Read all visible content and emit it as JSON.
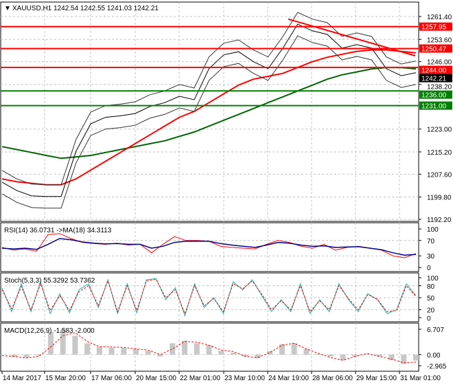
{
  "chart_data": [
    {
      "type": "line",
      "title": "XAUUSD,H1",
      "ohlc": {
        "open": "1242.54",
        "high": "1242.55",
        "low": "1241.03",
        "close": "1242.21"
      },
      "ylim": [
        1192.2,
        1261.4
      ],
      "yticks": [
        "1261.40",
        "1253.60",
        "1246.00",
        "1238.20",
        "1223.00",
        "1215.20",
        "1207.60",
        "1199.80",
        "1192.20"
      ],
      "close": [
        1204.9,
        1202,
        1200.2,
        1200,
        1200,
        1215.4,
        1224.8,
        1227,
        1227.5,
        1228.3,
        1230.7,
        1232,
        1234.2,
        1233,
        1243.6,
        1248.3,
        1249.4,
        1246,
        1243.6,
        1250.6,
        1258.8,
        1256.5,
        1255.3,
        1250.6,
        1251.8,
        1250.6,
        1243.6,
        1241.2,
        1242.2
      ],
      "ma_red": [
        1206,
        1205,
        1204.5,
        1204,
        1204,
        1206,
        1209,
        1212,
        1215,
        1218,
        1221,
        1224,
        1227,
        1229,
        1232,
        1235,
        1238,
        1240,
        1241,
        1242,
        1244,
        1246,
        1247.5,
        1248.5,
        1249.5,
        1250,
        1250,
        1249.5,
        1249
      ],
      "ma_green": [
        1217,
        1216,
        1215,
        1214,
        1213,
        1213.5,
        1214,
        1215,
        1216,
        1217,
        1218,
        1219,
        1220.5,
        1222,
        1224,
        1226,
        1228,
        1230,
        1232,
        1234,
        1236,
        1238,
        1240,
        1241.5,
        1242.5,
        1243.5,
        1244,
        1244,
        1243.5
      ],
      "levels": [
        {
          "value": "1257.95",
          "color": "#ff0000"
        },
        {
          "value": "1250.47",
          "color": "#ff0000"
        },
        {
          "value": "1244.00",
          "color": "#ff0000"
        },
        {
          "value": "1236.00",
          "color": "#008000"
        },
        {
          "value": "1231.00",
          "color": "#008000"
        }
      ],
      "current": "1242.21"
    },
    {
      "type": "line",
      "title": "RSI(14) 36.0731 ->MA(18) 34.3113",
      "ylim": [
        0,
        100
      ],
      "yticks": [
        "100",
        "70",
        "30",
        "0"
      ],
      "rsi": [
        52,
        45,
        48,
        42,
        85,
        88,
        75,
        65,
        62,
        60,
        63,
        58,
        60,
        38,
        60,
        80,
        70,
        70,
        68,
        55,
        52,
        50,
        48,
        60,
        70,
        65,
        55,
        50,
        60,
        45,
        52,
        55,
        50,
        45,
        30,
        25,
        36
      ],
      "ma": [
        50,
        48,
        50,
        47,
        60,
        75,
        72,
        66,
        63,
        61,
        62,
        60,
        60,
        50,
        55,
        65,
        68,
        68,
        68,
        62,
        58,
        55,
        52,
        58,
        65,
        63,
        58,
        55,
        56,
        52,
        53,
        54,
        50,
        46,
        38,
        32,
        34
      ]
    },
    {
      "type": "line",
      "title": "Stoch(5,3,3) 55.3292 53.7362",
      "ylim": [
        0,
        100
      ],
      "yticks": [
        "100",
        "80",
        "50",
        "20",
        "0"
      ],
      "main": [
        75,
        15,
        85,
        15,
        90,
        10,
        60,
        12,
        70,
        85,
        25,
        95,
        10,
        85,
        12,
        95,
        98,
        45,
        75,
        5,
        85,
        25,
        50,
        10,
        90,
        70,
        95,
        55,
        15,
        45,
        15,
        85,
        10,
        45,
        15,
        85,
        45,
        15,
        60,
        45,
        10,
        20,
        85,
        55
      ],
      "signal": [
        70,
        22,
        78,
        20,
        85,
        18,
        55,
        18,
        65,
        80,
        30,
        92,
        15,
        80,
        18,
        92,
        96,
        50,
        70,
        10,
        80,
        30,
        48,
        15,
        85,
        72,
        92,
        58,
        20,
        42,
        20,
        80,
        15,
        42,
        20,
        80,
        48,
        20,
        58,
        46,
        15,
        18,
        80,
        53
      ]
    },
    {
      "type": "bar",
      "title": "MACD(12,26,9) -1.583 -2.000",
      "ylim": [
        -2.965,
        6.707
      ],
      "yticks": [
        "6.707",
        "0.00",
        "-2.965"
      ],
      "histogram": [
        0,
        -0.6,
        -0.8,
        -0.3,
        6,
        6.7,
        5,
        3,
        2,
        1.8,
        1.8,
        1.5,
        1,
        -0.5,
        3,
        3.7,
        3,
        2.5,
        1,
        0.5,
        -0.5,
        -1,
        1,
        2.8,
        3,
        1.5,
        0.2,
        -0.5,
        -1.5,
        -0.5,
        0.2,
        -0.5,
        -1.5,
        -2.5,
        -1.6
      ],
      "signal": [
        -0.3,
        -0.5,
        -0.9,
        -0.5,
        2,
        5,
        5.8,
        3.5,
        2.1,
        2,
        1.9,
        1.5,
        1.2,
        0,
        1.5,
        3.5,
        3.3,
        2.5,
        1.2,
        0.8,
        -0.5,
        -0.8,
        0.5,
        2.5,
        3,
        1.5,
        0.3,
        -0.8,
        -1.5,
        -0.5,
        0.3,
        -0.5,
        -1.2,
        -2.2,
        -2
      ]
    }
  ],
  "time_labels": [
    "14 Mar 2017",
    "15 Mar 20:00",
    "17 Mar 06:00",
    "20 Mar 15:00",
    "22 Mar 01:00",
    "23 Mar 10:00",
    "24 Mar 19:00",
    "28 Mar 06:00",
    "29 Mar 15:00",
    "31 Mar 01:00"
  ]
}
